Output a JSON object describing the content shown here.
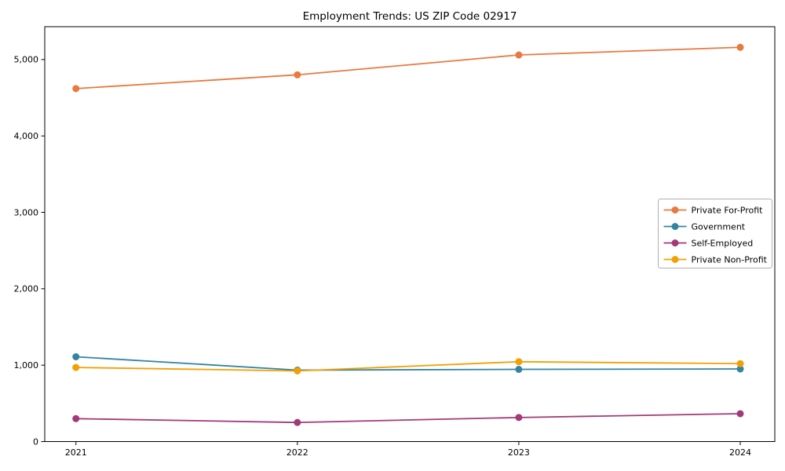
{
  "chart_data": {
    "type": "line",
    "title": "Employment Trends: US ZIP Code 02917",
    "categories": [
      "2021",
      "2022",
      "2023",
      "2024"
    ],
    "series": [
      {
        "name": "Private For-Profit",
        "color": "#e8793f",
        "values": [
          4620,
          4800,
          5060,
          5160
        ]
      },
      {
        "name": "Government",
        "color": "#3384a3",
        "values": [
          1110,
          935,
          945,
          950
        ]
      },
      {
        "name": "Self-Employed",
        "color": "#a23a78",
        "values": [
          300,
          250,
          315,
          365
        ]
      },
      {
        "name": "Private Non-Profit",
        "color": "#f3a002",
        "values": [
          970,
          925,
          1045,
          1020
        ]
      }
    ],
    "xlabel": "",
    "ylabel": "",
    "ylim": [
      0,
      5430
    ],
    "yticks": [
      0,
      1000,
      2000,
      3000,
      4000,
      5000
    ],
    "ytick_labels": [
      "0",
      "1,000",
      "2,000",
      "3,000",
      "4,000",
      "5,000"
    ],
    "grid": false,
    "legend_position": "center-right",
    "marker": "circle",
    "axis_color": "#000000",
    "legend_border_color": "#b0b0b0",
    "background": "#ffffff"
  }
}
